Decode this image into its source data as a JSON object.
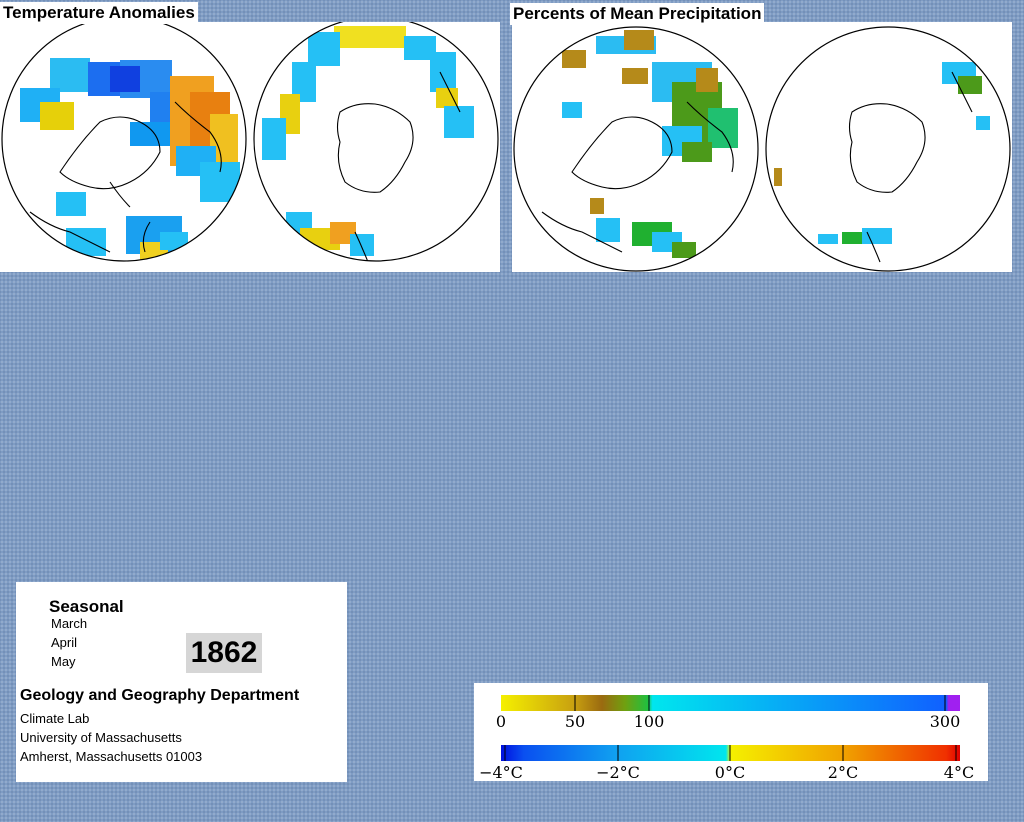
{
  "temperature_panel": {
    "title": "Temperature Anomalies"
  },
  "precipitation_panel": {
    "title": "Percents of Mean Precipitation"
  },
  "info": {
    "season_title": "Seasonal",
    "months": [
      "March",
      "April",
      "May"
    ],
    "year": "1862",
    "department": "Geology and Geography Department",
    "lab": "Climate Lab",
    "university": "University of Massachusetts",
    "address": "Amherst, Massachusetts 01003"
  },
  "precipitation_scale": {
    "tick_labels": [
      "0",
      "50",
      "100",
      "300"
    ],
    "colors": {
      "dry": "#f5f000",
      "mid": "#b58a1a",
      "wet": "#00e6ee",
      "very_wet": "#1060ff",
      "extreme": "#a020f0"
    }
  },
  "temperature_scale": {
    "tick_labels": [
      "−4°C",
      "−2°C",
      "0°C",
      "2°C",
      "4°C"
    ],
    "colors": {
      "cold": "#0010e0",
      "cool": "#00e6ee",
      "neutral": "#f5f000",
      "warm": "#f08000",
      "hot": "#e00000"
    }
  }
}
